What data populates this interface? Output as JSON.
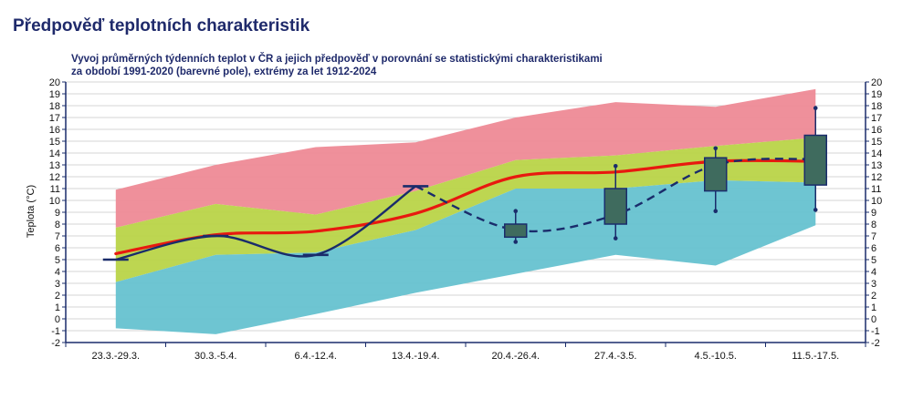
{
  "page": {
    "title": "Předpověď teplotních charakteristik"
  },
  "chart_data": {
    "type": "area",
    "subtitle_lines": [
      "Vyvoj průměrných týdenních teplot v ČR a jejich předpověď v porovnání se statistickými charakteristikami",
      "za období 1991-2020 (barevné pole), extrémy za let 1912-2024"
    ],
    "ylabel": "Teplota (°C)",
    "ylim": [
      -2,
      20
    ],
    "yticks": [
      -2,
      -1,
      0,
      1,
      2,
      3,
      4,
      5,
      6,
      7,
      8,
      9,
      10,
      11,
      12,
      13,
      14,
      15,
      16,
      17,
      18,
      19,
      20
    ],
    "grid": true,
    "categories": [
      "23.3.-29.3.",
      "30.3.-5.4.",
      "6.4.-12.4.",
      "13.4.-19.4.",
      "20.4.-26.4.",
      "27.4.-3.5.",
      "4.5.-10.5.",
      "11.5.-17.5."
    ],
    "colors": {
      "max_band": "#ee8a96",
      "upper_band": "#b9d448",
      "lower_band": "#66c2d0",
      "mean_line": "#e8190f",
      "observed_line": "#1a2c6b",
      "forecast_box": "#3f6b5e",
      "axis": "#1a2c6b"
    },
    "bands": {
      "min": [
        -0.8,
        -1.3,
        0.4,
        2.2,
        3.8,
        5.4,
        4.5,
        7.9
      ],
      "low": [
        3.1,
        5.4,
        5.6,
        7.5,
        11.0,
        11.0,
        11.7,
        11.5
      ],
      "high": [
        7.7,
        9.7,
        8.8,
        10.8,
        13.4,
        13.8,
        14.6,
        15.3
      ],
      "max": [
        10.9,
        13.0,
        14.5,
        14.9,
        17.0,
        18.3,
        17.9,
        19.4
      ]
    },
    "mean": [
      5.5,
      7.1,
      7.4,
      8.9,
      12.0,
      12.4,
      13.3,
      13.3
    ],
    "series": [
      {
        "values": [
          5.0,
          7.0,
          5.4,
          11.2,
          null,
          null,
          null,
          null
        ]
      },
      {
        "values": [
          null,
          null,
          null,
          11.2,
          7.5,
          8.8,
          13.0,
          13.5
        ]
      }
    ],
    "forecast_boxes": [
      {
        "category": "20.4.-26.4.",
        "min": 6.5,
        "q1": 6.9,
        "q3": 8.0,
        "max": 9.1
      },
      {
        "category": "27.4.-3.5.",
        "min": 6.8,
        "q1": 8.0,
        "q3": 11.0,
        "max": 12.9
      },
      {
        "category": "4.5.-10.5.",
        "min": 9.1,
        "q1": 10.8,
        "q3": 13.6,
        "max": 14.4
      },
      {
        "category": "11.5.-17.5.",
        "min": 9.2,
        "q1": 11.3,
        "q3": 15.5,
        "max": 17.8
      }
    ]
  }
}
